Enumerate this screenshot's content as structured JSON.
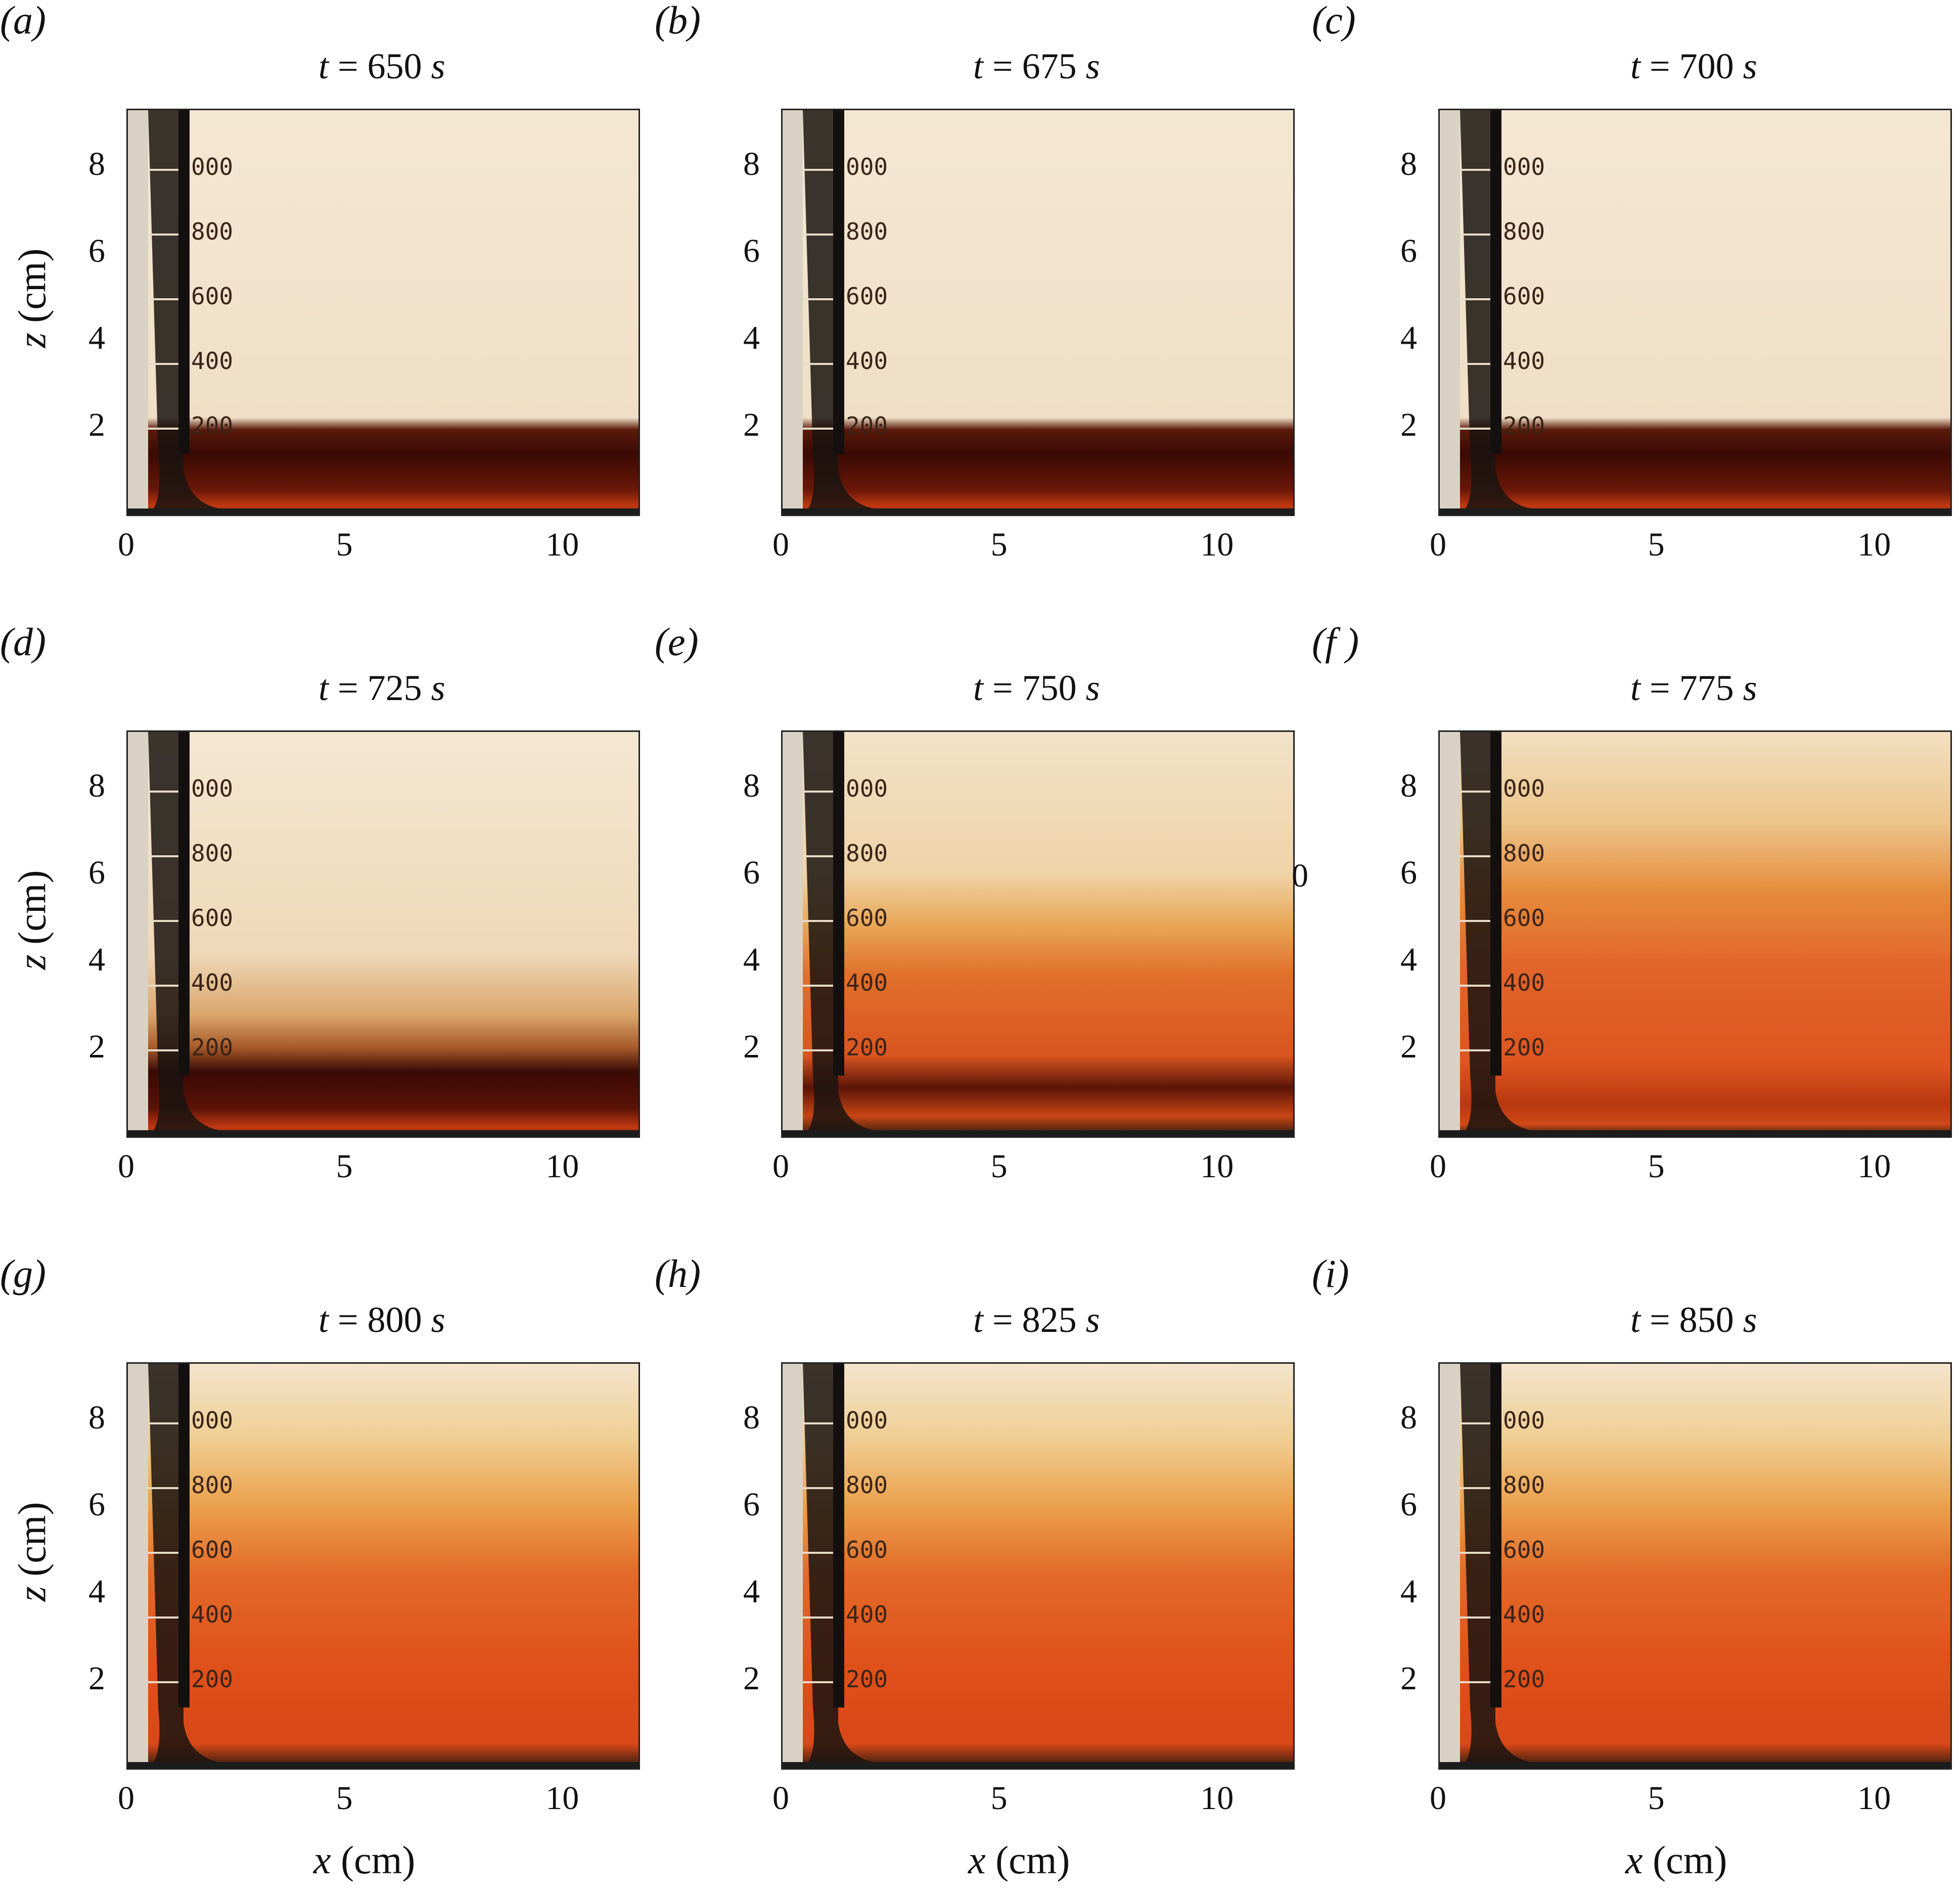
{
  "panels": [
    {
      "label": "(a)",
      "time": "650",
      "phase": 0
    },
    {
      "label": "(b)",
      "time": "675",
      "phase": 1
    },
    {
      "label": "(c)",
      "time": "700",
      "phase": 2
    },
    {
      "label": "(d)",
      "time": "725",
      "phase": 3
    },
    {
      "label": "(e)",
      "time": "750",
      "phase": 4
    },
    {
      "label": "(f )",
      "time": "775",
      "phase": 5
    },
    {
      "label": "(g)",
      "time": "800",
      "phase": 6
    },
    {
      "label": "(h)",
      "time": "825",
      "phase": 7
    },
    {
      "label": "(i)",
      "time": "850",
      "phase": 8
    }
  ],
  "title_prefix": "t =",
  "title_unit": "s",
  "x_axis": {
    "label_var": "x",
    "label_unit": "(cm)",
    "ticks": [
      "0",
      "5",
      "10"
    ]
  },
  "y_axis": {
    "label_var": "z",
    "label_unit": "(cm)",
    "ticks": [
      "2",
      "4",
      "6",
      "8"
    ]
  },
  "beaker_scale": [
    "200",
    "400",
    "600",
    "800",
    "000"
  ],
  "stray_mark": "0",
  "colors": {
    "clear": "#f4e7d2",
    "dark_layer": "#3a0a05",
    "mixed": "#e0501a",
    "wall": "#1a1410"
  }
}
